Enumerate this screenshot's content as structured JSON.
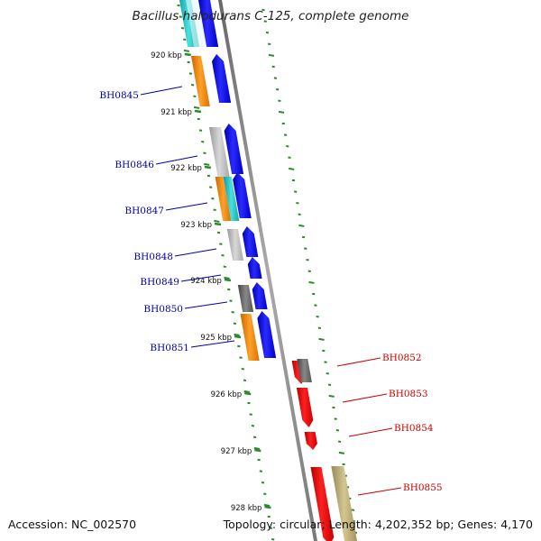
{
  "title": "Bacillus halodurans C-125, complete genome",
  "footer": {
    "accession": "Accession: NC_002570",
    "summary": "Topology: circular; Length: 4,202,352 bp; Genes: 4,170"
  },
  "kbp_ticks": [
    "920 kbp",
    "921 kbp",
    "922 kbp",
    "923 kbp",
    "924 kbp",
    "925 kbp",
    "926 kbp",
    "927 kbp",
    "928 kbp"
  ],
  "colors": {
    "backbone": "#888888",
    "tick": "#2a8a2a",
    "forward_gene": "#1a1aee",
    "reverse_gene": "#ee1111",
    "label_left": "#0000aa",
    "label_right": "#cc0000",
    "cog_orange": "#f08c10",
    "cog_cyan": "#2cc8c8",
    "cog_light_gray": "#bbbbbb",
    "cog_dark_gray": "#666666",
    "cog_khaki": "#b8a870"
  },
  "forward_genes": [
    {
      "name": "BH0845",
      "cog_color": "orange"
    },
    {
      "name": "BH0846",
      "cog_color": "light_gray"
    },
    {
      "name": "BH0847",
      "cog_color": "orange+cyan"
    },
    {
      "name": "BH0848",
      "cog_color": "light_gray"
    },
    {
      "name": "BH0849",
      "cog_color": ""
    },
    {
      "name": "BH0850",
      "cog_color": "dark_gray"
    },
    {
      "name": "BH0851",
      "cog_color": "orange"
    }
  ],
  "reverse_genes": [
    {
      "name": "BH0852",
      "cog_color": "dark_gray"
    },
    {
      "name": "BH0853",
      "cog_color": ""
    },
    {
      "name": "BH0854",
      "cog_color": ""
    },
    {
      "name": "BH0855",
      "cog_color": "khaki"
    }
  ]
}
